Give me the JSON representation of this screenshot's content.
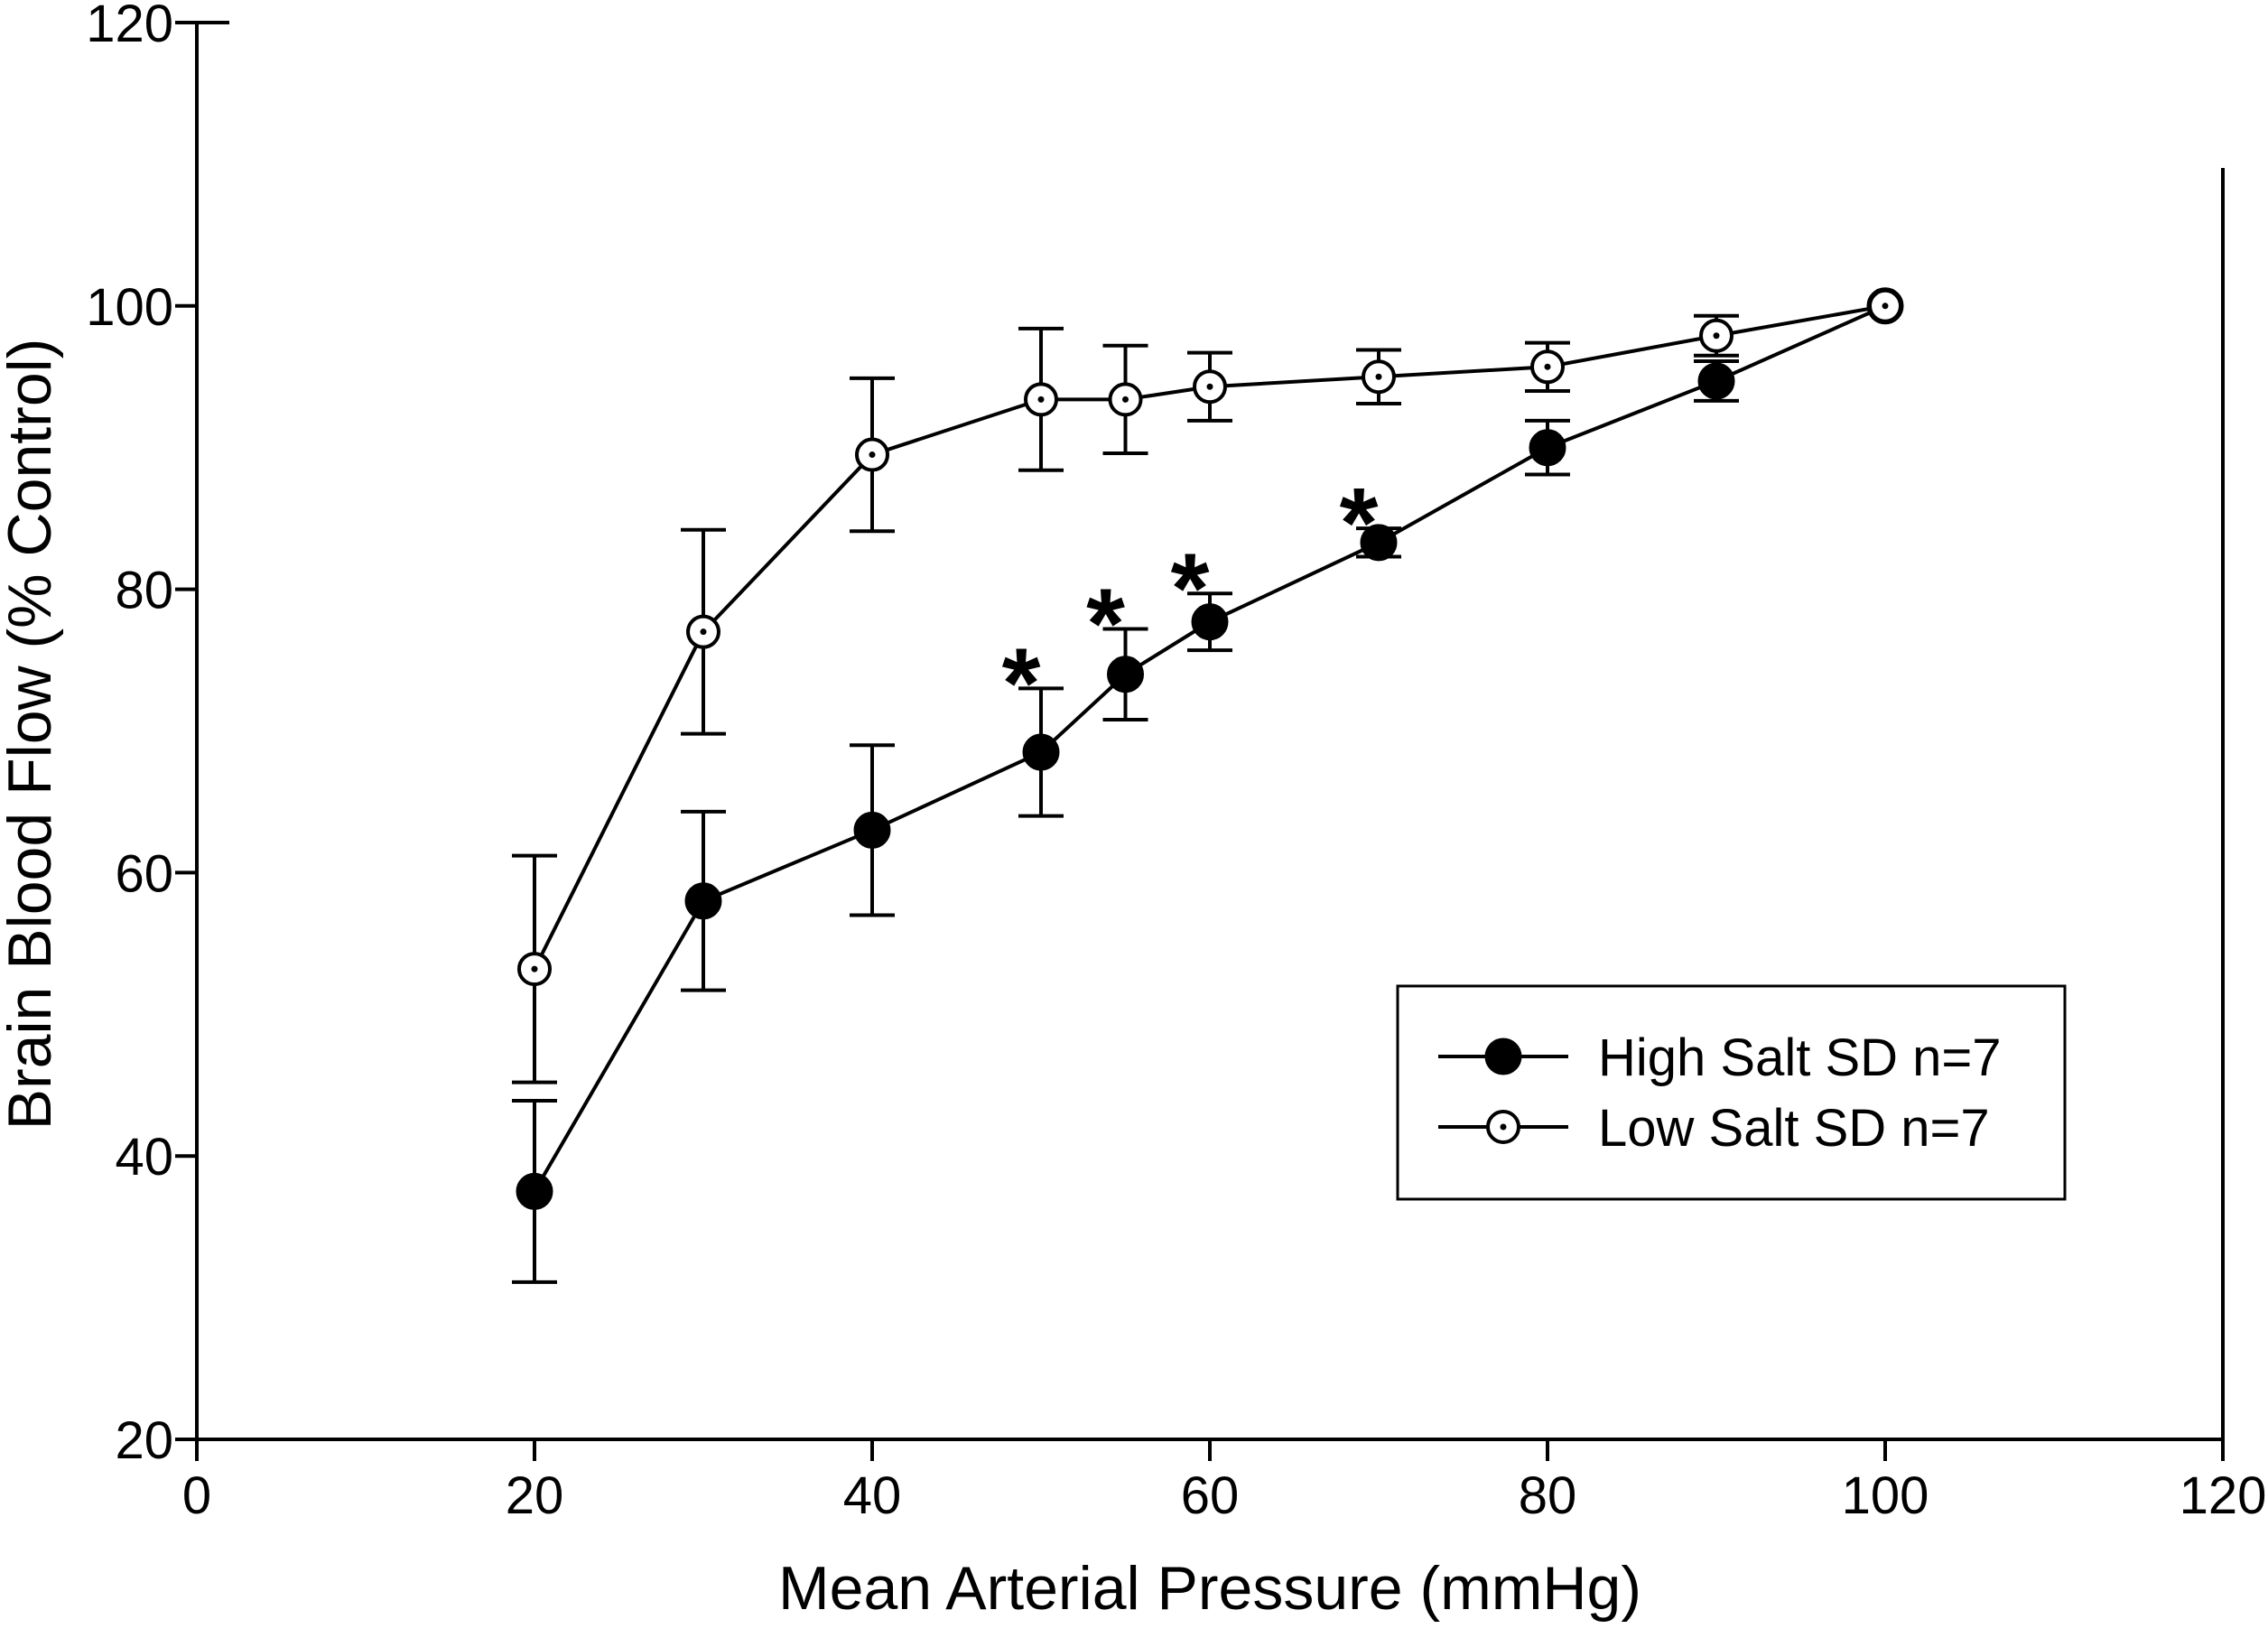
{
  "chart_data": {
    "type": "line",
    "title": "",
    "xlabel": "Mean Arterial Pressure (mmHg)",
    "ylabel": "Brain Blood Flow (% Control)",
    "xlim": [
      0,
      120
    ],
    "ylim": [
      20,
      120
    ],
    "x_ticks": [
      "0",
      "20",
      "40",
      "60",
      "80",
      "100",
      "120"
    ],
    "y_ticks": [
      "20",
      "40",
      "60",
      "80",
      "100",
      "120"
    ],
    "grid": false,
    "legend_position": "bottom-right",
    "series": [
      {
        "name": "High Salt SD n=7",
        "marker": "filled-circle",
        "x": [
          20,
          30,
          40,
          50,
          55,
          60,
          70,
          80,
          90,
          100
        ],
        "y": [
          37.5,
          58,
          63,
          68.5,
          74,
          77.7,
          83.3,
          90,
          94.7,
          100
        ],
        "error": [
          6.4,
          6.3,
          6,
          4.5,
          3.2,
          2,
          1,
          1.9,
          1.4,
          0
        ]
      },
      {
        "name": "Low Salt SD n=7",
        "marker": "open-circle-dot",
        "x": [
          20,
          30,
          40,
          50,
          55,
          60,
          70,
          80,
          90,
          100
        ],
        "y": [
          53.2,
          77,
          89.5,
          93.4,
          93.4,
          94.3,
          95,
          95.7,
          97.9,
          100
        ],
        "error": [
          8,
          7.2,
          5.4,
          5,
          3.8,
          2.4,
          1.9,
          1.7,
          1.4,
          0
        ]
      }
    ],
    "annotations": [
      {
        "text": "*",
        "x": 50
      },
      {
        "text": "*",
        "x": 55
      },
      {
        "text": "*",
        "x": 60
      },
      {
        "text": "*",
        "x": 70
      }
    ]
  }
}
